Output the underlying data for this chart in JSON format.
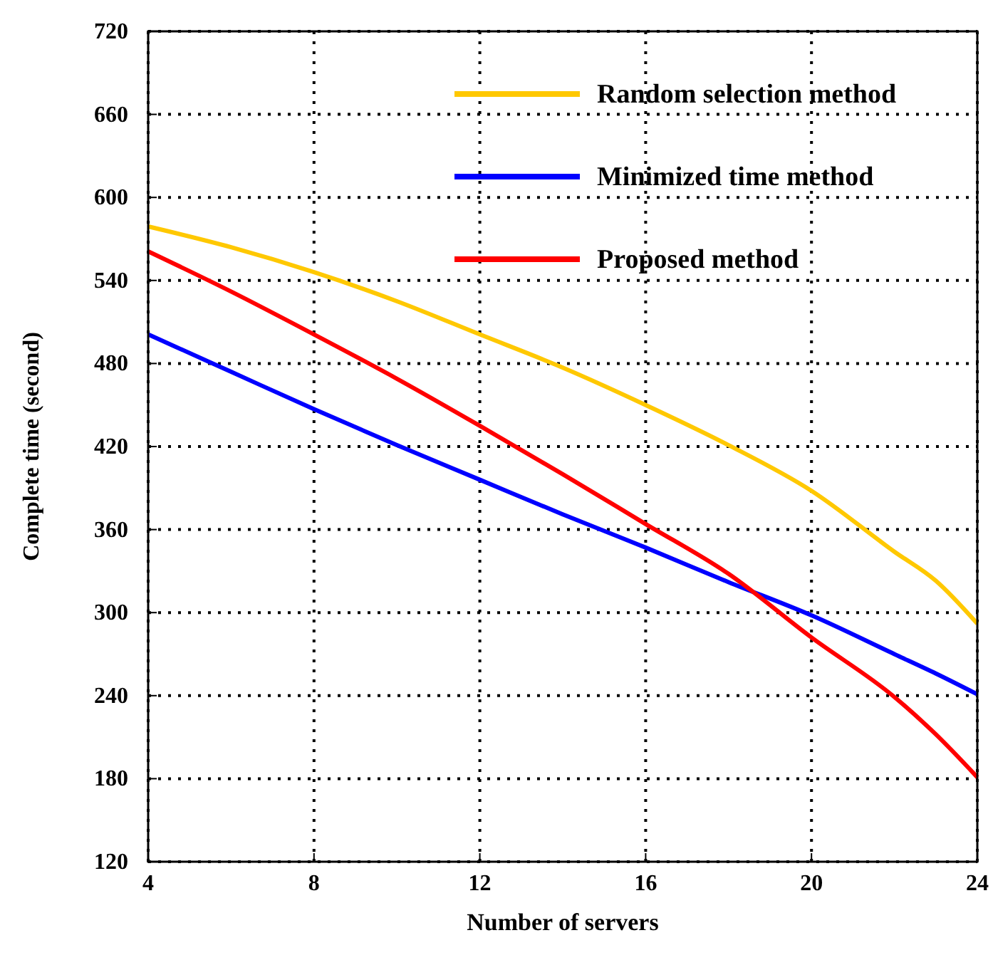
{
  "chart_data": {
    "type": "line",
    "xlabel": "Number of servers",
    "ylabel": "Complete time (second)",
    "x": [
      4,
      6,
      8,
      10,
      12,
      14,
      16,
      18,
      20,
      22,
      23,
      24
    ],
    "xlim": [
      4,
      24
    ],
    "xticks": [
      4,
      8,
      12,
      16,
      20,
      24
    ],
    "ylim": [
      120,
      720
    ],
    "yticks": [
      120,
      180,
      240,
      300,
      360,
      420,
      480,
      540,
      600,
      660,
      720
    ],
    "grid": true,
    "legend": "top right",
    "marker": "none",
    "line_style": "solid",
    "series": [
      {
        "name": "Random selection method",
        "color": "#ffc800",
        "values": [
          579,
          564,
          546,
          525,
          501,
          477,
          450,
          421,
          388,
          344,
          323,
          292
        ]
      },
      {
        "name": "Minimized time method",
        "color": "#0000ff",
        "values": [
          501,
          474,
          447,
          421,
          396,
          371,
          347,
          322,
          298,
          270,
          256,
          241
        ]
      },
      {
        "name": "Proposed method",
        "color": "#ff0000",
        "values": [
          561,
          532,
          501,
          469,
          435,
          400,
          364,
          328,
          282,
          239,
          212,
          181
        ]
      }
    ]
  }
}
